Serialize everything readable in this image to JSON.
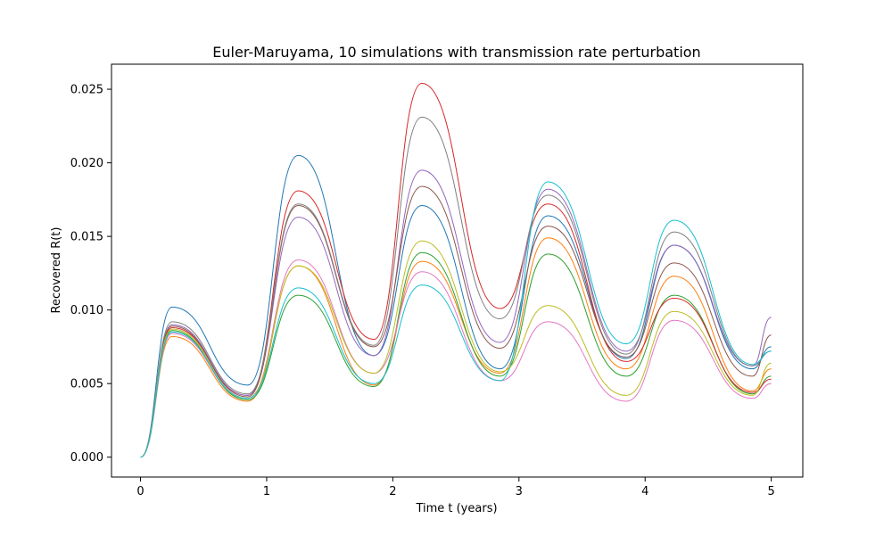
{
  "chart_data": {
    "type": "line",
    "title": "Euler-Maruyama, 10 simulations with transmission rate perturbation",
    "xlabel": "Time t (years)",
    "ylabel": "Recovered R(t)",
    "xlim": [
      -0.23,
      5.25
    ],
    "ylim": [
      -0.00135,
      0.0267
    ],
    "xticks": [
      0,
      1,
      2,
      3,
      4,
      5
    ],
    "xtick_labels": [
      "0",
      "1",
      "2",
      "3",
      "4",
      "5"
    ],
    "yticks": [
      0,
      0.005,
      0.01,
      0.015,
      0.02,
      0.025
    ],
    "ytick_labels": [
      "0.000",
      "0.005",
      "0.010",
      "0.015",
      "0.020",
      "0.025"
    ],
    "grid": false,
    "legend": "none",
    "series_points_x": [
      0,
      0.25,
      0.85,
      1.25,
      1.85,
      2.23,
      2.85,
      3.23,
      3.85,
      4.23,
      4.85,
      5.0
    ],
    "series": [
      {
        "color": "#1f77b4",
        "values": [
          0,
          0.0102,
          0.0049,
          0.0205,
          0.0069,
          0.0171,
          0.006,
          0.0164,
          0.0067,
          0.0144,
          0.006,
          0.0075
        ]
      },
      {
        "color": "#ff7f0e",
        "values": [
          0,
          0.0082,
          0.0038,
          0.013,
          0.0049,
          0.0133,
          0.0057,
          0.0149,
          0.006,
          0.0123,
          0.0045,
          0.006
        ]
      },
      {
        "color": "#2ca02c",
        "values": [
          0,
          0.0086,
          0.0039,
          0.011,
          0.0048,
          0.0139,
          0.0055,
          0.0138,
          0.0055,
          0.011,
          0.0043,
          0.0055
        ]
      },
      {
        "color": "#d62728",
        "values": [
          0,
          0.0088,
          0.0042,
          0.0181,
          0.008,
          0.0254,
          0.0101,
          0.0172,
          0.0065,
          0.0108,
          0.0044,
          0.0053
        ]
      },
      {
        "color": "#9467bd",
        "values": [
          0,
          0.009,
          0.0042,
          0.0163,
          0.0069,
          0.0195,
          0.0078,
          0.0182,
          0.0072,
          0.0144,
          0.0062,
          0.0095
        ]
      },
      {
        "color": "#8c564b",
        "values": [
          0,
          0.0089,
          0.0041,
          0.0171,
          0.0075,
          0.0184,
          0.0074,
          0.0157,
          0.0068,
          0.0132,
          0.0055,
          0.0083
        ]
      },
      {
        "color": "#e377c2",
        "values": [
          0,
          0.0084,
          0.004,
          0.0134,
          0.0057,
          0.0126,
          0.0052,
          0.0092,
          0.0038,
          0.0093,
          0.004,
          0.005
        ]
      },
      {
        "color": "#7f7f7f",
        "values": [
          0,
          0.0092,
          0.0043,
          0.0172,
          0.0076,
          0.0231,
          0.0094,
          0.0178,
          0.007,
          0.0153,
          0.0062,
          0.0072
        ]
      },
      {
        "color": "#bcbd22",
        "values": [
          0,
          0.0087,
          0.004,
          0.013,
          0.0057,
          0.0147,
          0.0058,
          0.0103,
          0.0042,
          0.0099,
          0.0042,
          0.0064
        ]
      },
      {
        "color": "#17becf",
        "values": [
          0,
          0.0085,
          0.004,
          0.0115,
          0.005,
          0.0117,
          0.0052,
          0.0187,
          0.0077,
          0.0161,
          0.0063,
          0.0072
        ]
      }
    ]
  }
}
